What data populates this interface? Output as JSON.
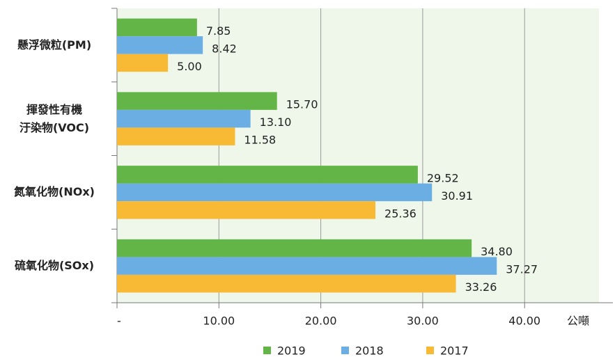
{
  "chart_data": {
    "type": "hbar",
    "categories": [
      "懸浮微粒(PM)",
      "揮發性有機\n汙染物(VOC)",
      "氮氧化物(NOx)",
      "硫氧化物(SOx)"
    ],
    "series": [
      {
        "name": "2019",
        "color": "#63b547",
        "values": [
          7.85,
          15.7,
          29.52,
          34.8
        ],
        "value_labels": [
          "7.85",
          "15.70",
          "29.52",
          "34.80"
        ]
      },
      {
        "name": "2018",
        "color": "#6aaee3",
        "values": [
          8.42,
          13.1,
          30.91,
          37.27
        ],
        "value_labels": [
          "8.42",
          "13.10",
          "30.91",
          "37.27"
        ]
      },
      {
        "name": "2017",
        "color": "#f8b935",
        "values": [
          5.0,
          11.58,
          25.36,
          33.26
        ],
        "value_labels": [
          "5.00",
          "11.58",
          "25.36",
          "33.26"
        ]
      }
    ],
    "xlim": [
      0,
      47.3
    ],
    "xticks": [
      {
        "value": 0,
        "label": "-"
      },
      {
        "value": 10,
        "label": "10.00"
      },
      {
        "value": 20,
        "label": "20.00"
      },
      {
        "value": 30,
        "label": "30.00"
      },
      {
        "value": 40,
        "label": "40.00"
      }
    ],
    "x_label": "公噸",
    "grid": true,
    "legend": "bottom"
  }
}
